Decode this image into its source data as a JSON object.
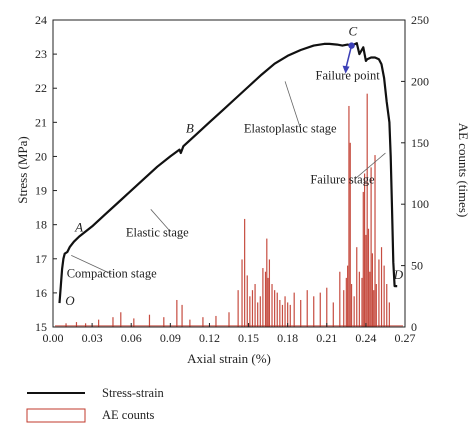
{
  "chart_data": {
    "type": "line",
    "xlabel": "Axial strain (%)",
    "ylabel_left": "Stress (MPa)",
    "ylabel_right": "AE counts (times)",
    "xlim": [
      0,
      0.27
    ],
    "ylim_left": [
      15,
      24
    ],
    "ylim_right": [
      0,
      250
    ],
    "x_ticks": [
      "0.00",
      "0.03",
      "0.06",
      "0.09",
      "0.12",
      "0.15",
      "0.18",
      "0.21",
      "0.24",
      "0.27"
    ],
    "y_left_ticks": [
      "15",
      "16",
      "17",
      "18",
      "19",
      "20",
      "21",
      "22",
      "23",
      "24"
    ],
    "y_right_ticks": [
      "0",
      "50",
      "100",
      "150",
      "200",
      "250"
    ],
    "legend": {
      "placement": "bottom-left",
      "entries": [
        {
          "label": "Stress-strain",
          "style": "line",
          "color": "#111111"
        },
        {
          "label": "AE counts",
          "style": "bar",
          "color": "#c0392b"
        }
      ]
    },
    "series": [
      {
        "name": "Stress-strain",
        "axis": "left",
        "color": "#111111",
        "x": [
          0.005,
          0.006,
          0.007,
          0.008,
          0.009,
          0.011,
          0.013,
          0.016,
          0.02,
          0.025,
          0.03,
          0.04,
          0.05,
          0.06,
          0.07,
          0.08,
          0.09,
          0.097,
          0.098,
          0.1,
          0.11,
          0.12,
          0.13,
          0.14,
          0.15,
          0.16,
          0.17,
          0.18,
          0.19,
          0.2,
          0.208,
          0.212,
          0.218,
          0.222,
          0.226,
          0.229,
          0.233,
          0.235,
          0.238,
          0.24,
          0.241,
          0.244,
          0.247,
          0.25,
          0.252,
          0.254,
          0.256,
          0.258,
          0.259,
          0.26,
          0.261,
          0.262,
          0.264
        ],
        "y": [
          15.7,
          16.2,
          16.7,
          17.0,
          17.15,
          17.2,
          17.35,
          17.5,
          17.65,
          17.8,
          17.95,
          18.3,
          18.65,
          19.0,
          19.35,
          19.7,
          20.0,
          20.2,
          20.1,
          20.3,
          20.65,
          21.0,
          21.35,
          21.7,
          22.05,
          22.4,
          22.72,
          22.95,
          23.12,
          23.25,
          23.3,
          23.3,
          23.28,
          23.25,
          23.28,
          23.25,
          23.32,
          23.0,
          23.2,
          22.8,
          22.85,
          22.9,
          22.9,
          22.85,
          22.7,
          22.3,
          21.6,
          21.0,
          20.0,
          18.5,
          16.9,
          16.2,
          16.2
        ]
      },
      {
        "name": "AE counts",
        "axis": "right",
        "color": "#c0392b",
        "x": [
          0.01,
          0.018,
          0.025,
          0.035,
          0.046,
          0.052,
          0.062,
          0.074,
          0.085,
          0.095,
          0.099,
          0.105,
          0.115,
          0.125,
          0.135,
          0.142,
          0.145,
          0.147,
          0.149,
          0.151,
          0.153,
          0.155,
          0.157,
          0.159,
          0.161,
          0.163,
          0.164,
          0.165,
          0.166,
          0.168,
          0.17,
          0.172,
          0.174,
          0.176,
          0.178,
          0.18,
          0.182,
          0.185,
          0.19,
          0.195,
          0.2,
          0.205,
          0.21,
          0.215,
          0.22,
          0.223,
          0.225,
          0.226,
          0.227,
          0.228,
          0.229,
          0.231,
          0.233,
          0.235,
          0.237,
          0.238,
          0.239,
          0.24,
          0.241,
          0.242,
          0.243,
          0.244,
          0.245,
          0.246,
          0.247,
          0.248,
          0.25,
          0.252,
          0.254,
          0.256,
          0.258
        ],
        "y": [
          3,
          4,
          3,
          6,
          8,
          12,
          7,
          10,
          8,
          22,
          18,
          6,
          8,
          9,
          12,
          30,
          55,
          88,
          42,
          25,
          30,
          35,
          20,
          25,
          48,
          45,
          72,
          40,
          55,
          35,
          30,
          28,
          22,
          18,
          25,
          20,
          18,
          28,
          22,
          30,
          25,
          28,
          32,
          20,
          45,
          30,
          40,
          50,
          180,
          150,
          35,
          25,
          65,
          45,
          40,
          110,
          125,
          75,
          190,
          80,
          45,
          130,
          60,
          30,
          140,
          35,
          55,
          65,
          50,
          35,
          20
        ]
      }
    ],
    "annotations": [
      {
        "text": "O",
        "x": 0.013,
        "y": 15.65
      },
      {
        "text": "A",
        "x": 0.02,
        "y": 17.8
      },
      {
        "text": "B",
        "x": 0.105,
        "y": 20.7
      },
      {
        "text": "C",
        "x": 0.23,
        "y": 23.55
      },
      {
        "text": "D",
        "x": 0.265,
        "y": 16.4
      },
      {
        "text": "Compaction stage",
        "x": 0.045,
        "y": 16.45
      },
      {
        "text": "Elastic stage",
        "x": 0.08,
        "y": 17.65
      },
      {
        "text": "Elastoplastic stage",
        "x": 0.182,
        "y": 20.7
      },
      {
        "text": "Failure point",
        "x": 0.226,
        "y": 22.25
      },
      {
        "text": "Failure stage",
        "x": 0.222,
        "y": 19.2
      }
    ],
    "failure_point": {
      "x": 0.229,
      "y": 23.25
    }
  }
}
